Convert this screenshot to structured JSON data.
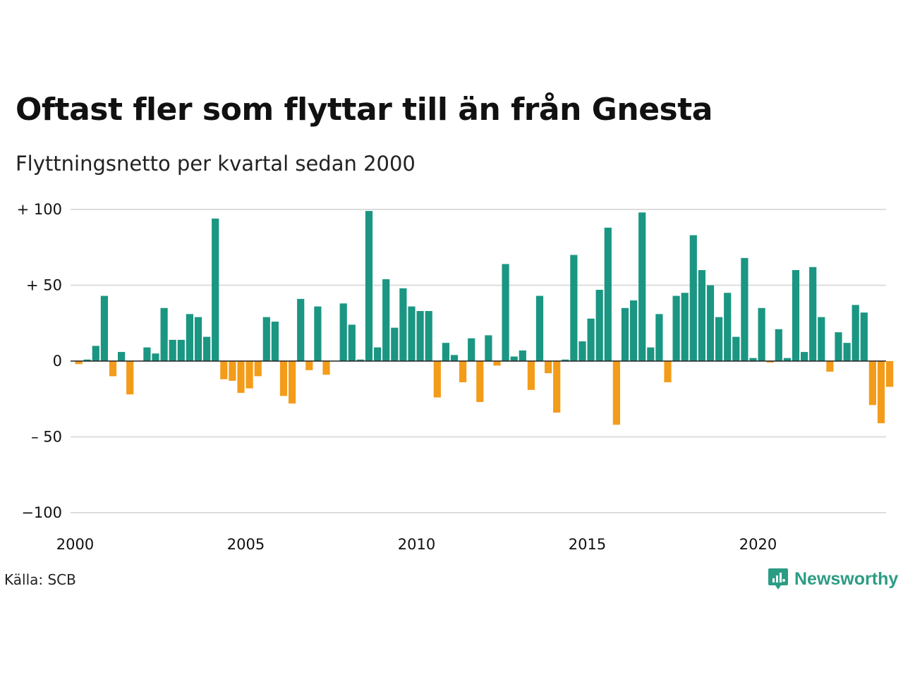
{
  "title": "Oftast fler som flyttar till än från Gnesta",
  "subtitle": "Flyttningsnetto per kvartal sedan 2000",
  "source": "Källa: SCB",
  "brand": {
    "name": "Newsworthy",
    "icon": "newsworthy-logo-icon"
  },
  "colors": {
    "positive": "#1a9682",
    "negative": "#f39c1a",
    "grid": "#dddddd",
    "zero": "#222222"
  },
  "chart_data": {
    "type": "bar",
    "title": "Oftast fler som flyttar till än från Gnesta",
    "subtitle": "Flyttningsnetto per kvartal sedan 2000",
    "xlabel": "",
    "ylabel": "",
    "ylim": [
      -100,
      100
    ],
    "y_ticks": [
      {
        "value": 100,
        "label": "+ 100"
      },
      {
        "value": 50,
        "label": "+  50"
      },
      {
        "value": 0,
        "label": "0"
      },
      {
        "value": -50,
        "label": "– 50"
      },
      {
        "value": -100,
        "label": "−100"
      }
    ],
    "x_ticks": [
      {
        "value": 2000,
        "label": "2000"
      },
      {
        "value": 2005,
        "label": "2005"
      },
      {
        "value": 2010,
        "label": "2010"
      },
      {
        "value": 2015,
        "label": "2015"
      },
      {
        "value": 2020,
        "label": "2020"
      }
    ],
    "grid": true,
    "legend": "none",
    "start_year": 2000,
    "quarters_per_year": 4,
    "values": [
      -2,
      1,
      10,
      43,
      -10,
      6,
      -22,
      0,
      9,
      5,
      35,
      14,
      14,
      31,
      29,
      16,
      94,
      -12,
      -13,
      -21,
      -18,
      -10,
      29,
      26,
      -23,
      -28,
      41,
      -6,
      36,
      -9,
      0,
      38,
      24,
      1,
      99,
      9,
      54,
      22,
      48,
      36,
      33,
      33,
      -24,
      12,
      4,
      -14,
      15,
      -27,
      17,
      -3,
      64,
      3,
      7,
      -19,
      43,
      -8,
      -34,
      1,
      70,
      13,
      28,
      47,
      88,
      -42,
      35,
      40,
      98,
      9,
      31,
      -14,
      43,
      45,
      83,
      60,
      50,
      29,
      45,
      16,
      68,
      2,
      35,
      -1,
      21,
      2,
      60,
      6,
      62,
      29,
      -7,
      19,
      12,
      37,
      32,
      -29,
      -41,
      -17
    ]
  }
}
